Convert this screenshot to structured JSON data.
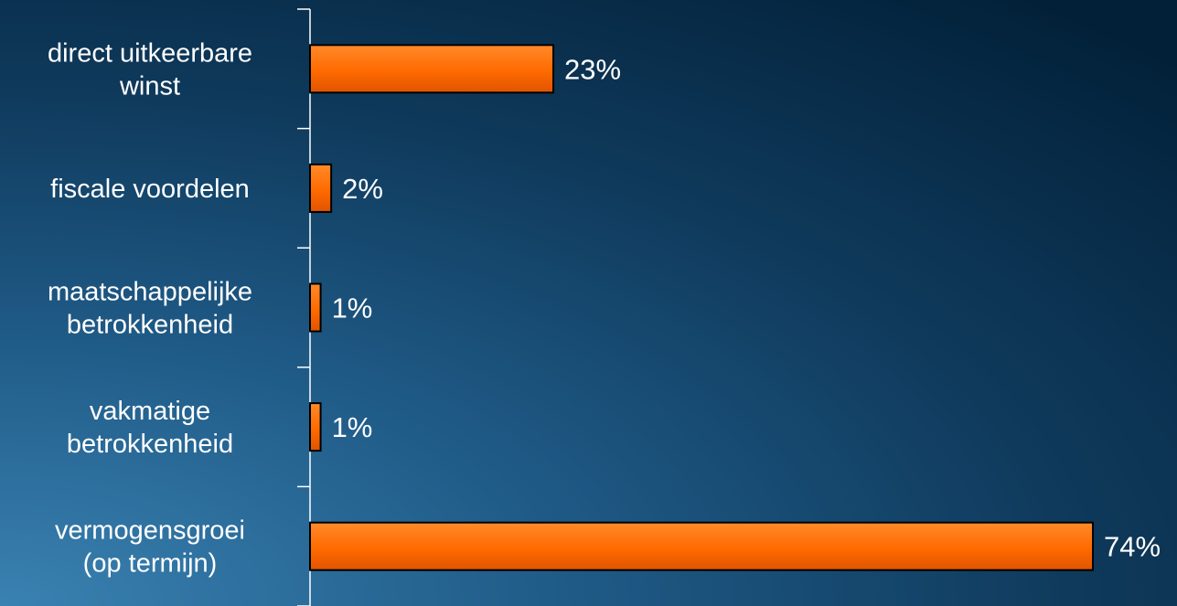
{
  "chart_data": {
    "type": "bar",
    "orientation": "horizontal",
    "categories": [
      [
        "direct uitkeerbare",
        "winst"
      ],
      [
        "fiscale voordelen"
      ],
      [
        "maatschappelijke",
        "betrokkenheid"
      ],
      [
        "vakmatige",
        "betrokkenheid"
      ],
      [
        "vermogensgroei",
        "(op termijn)"
      ]
    ],
    "values": [
      23,
      2,
      1,
      1,
      74
    ],
    "value_labels": [
      "23%",
      "2%",
      "1%",
      "1%",
      "74%"
    ],
    "value_unit": "%",
    "xlim": [
      0,
      74
    ],
    "grid": false,
    "legend": "none",
    "colors": {
      "bar": "#ff6a00",
      "bar_highlight": "#ff8a2a",
      "bar_border": "#000000",
      "text": "#ffffff",
      "axis": "#ffffff"
    }
  }
}
